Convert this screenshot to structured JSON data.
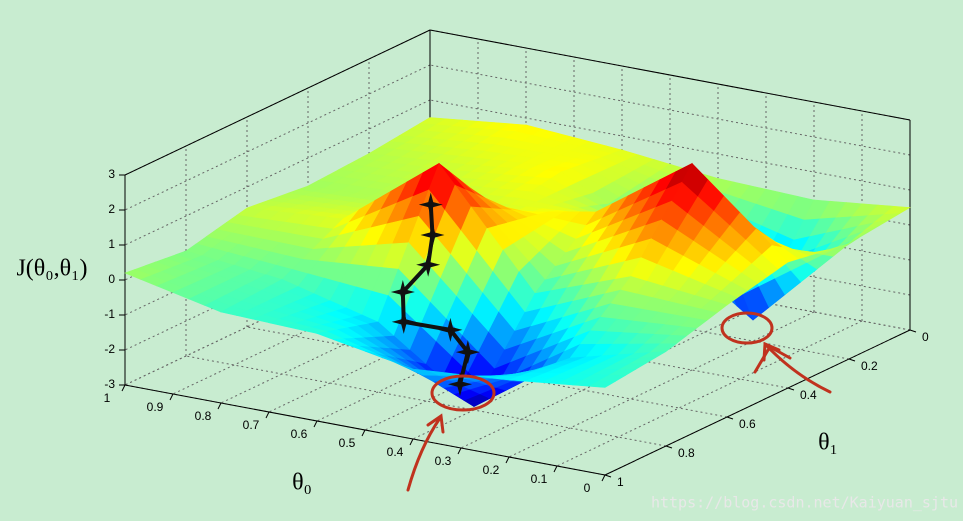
{
  "chart_data": {
    "type": "surface3d",
    "zlabel": "J(θ₀,θ₁)",
    "xlabel": "θ₀",
    "ylabel": "θ₁",
    "xlim": [
      0,
      1
    ],
    "ylim": [
      0,
      1
    ],
    "zlim": [
      -3,
      3
    ],
    "xticks": [
      0,
      0.1,
      0.2,
      0.3,
      0.4,
      0.5,
      0.6,
      0.7,
      0.8,
      0.9,
      1
    ],
    "yticks": [
      0,
      0.2,
      0.4,
      0.6,
      0.8,
      1
    ],
    "zticks": [
      -3,
      -2,
      -1,
      0,
      1,
      2,
      3
    ],
    "grid": true,
    "surface": {
      "x": [
        0,
        0.2,
        0.4,
        0.6,
        0.8,
        1
      ],
      "y": [
        0,
        0.2,
        0.4,
        0.6,
        0.8,
        1
      ],
      "z": [
        [
          0.5,
          0.3,
          0.6,
          0.2,
          -0.3,
          -0.5
        ],
        [
          0.2,
          -2.4,
          2.9,
          0.5,
          -1.0,
          -0.8
        ],
        [
          0.3,
          -0.5,
          1.0,
          -0.5,
          -2.9,
          -1.0
        ],
        [
          0.6,
          0.8,
          0.5,
          2.7,
          -1.0,
          -0.5
        ],
        [
          0.8,
          0.5,
          0.3,
          0.6,
          -0.3,
          -0.4
        ],
        [
          0.5,
          0.3,
          0.2,
          0.4,
          0.0,
          0.2
        ]
      ]
    },
    "path": {
      "color": "#111111",
      "x": [
        0.56,
        0.55,
        0.54,
        0.58,
        0.54,
        0.5,
        0.47,
        0.48
      ],
      "y": [
        0.69,
        0.7,
        0.73,
        0.75,
        0.81,
        0.72,
        0.71,
        0.72
      ],
      "z": [
        2,
        1.2,
        0.5,
        -0.3,
        -0.8,
        -1.3,
        -1.9,
        -2.8
      ]
    }
  },
  "watermark": "https://blog.csdn.net/Kaiyuan_sjtu"
}
